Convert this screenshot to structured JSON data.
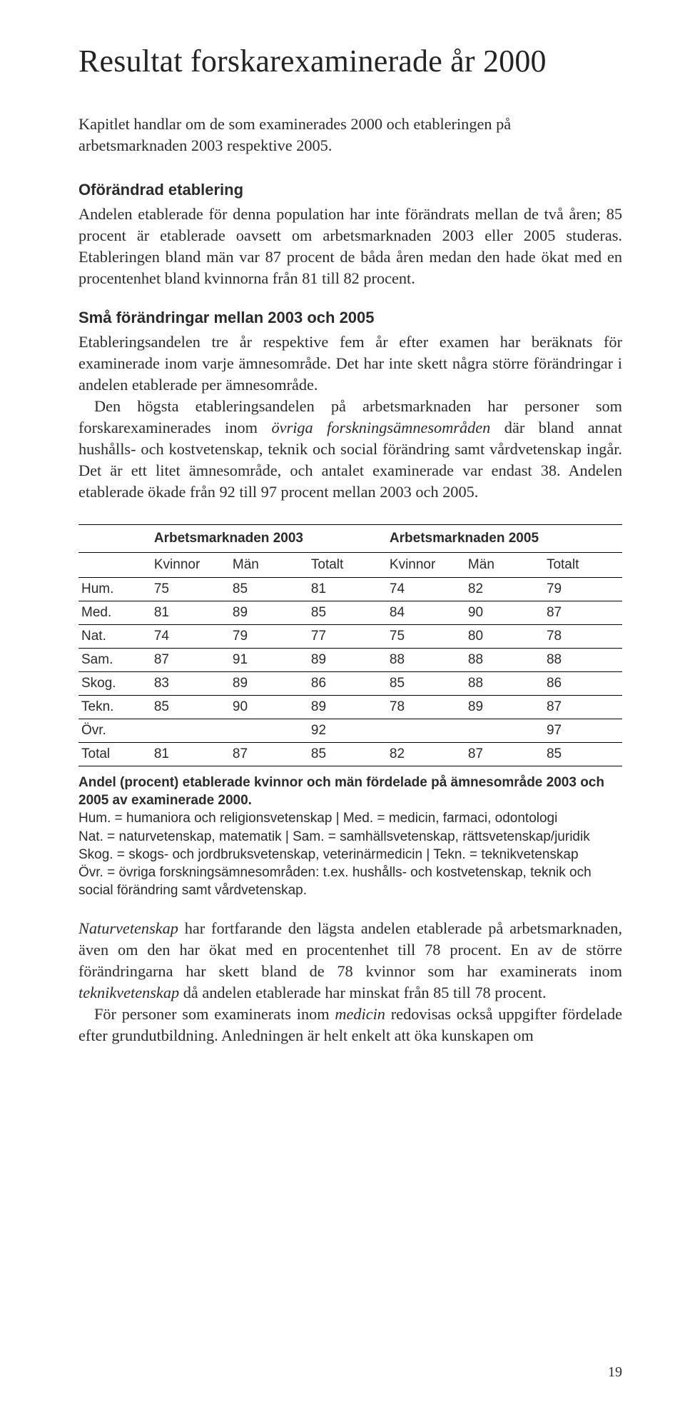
{
  "title": "Resultat forskarexaminerade år 2000",
  "intro": "Kapitlet handlar om de som examinerades 2000 och etableringen på arbetsmarknaden 2003 respektive 2005.",
  "s1": {
    "heading": "Oförändrad etablering",
    "p1": "Andelen etablerade för denna population har inte förändrats mellan de två åren; 85 procent är etablerade oavsett om arbetsmarknaden 2003 eller 2005 studeras. Etableringen bland män var 87 procent de båda åren medan den hade ökat med en procentenhet bland kvinnorna från 81 till 82 procent."
  },
  "s2": {
    "heading": "Små förändringar mellan 2003 och 2005",
    "p1": "Etableringsandelen tre år respektive fem år efter examen har beräknats för examinerade inom varje ämnesområde. Det har inte skett några större förändringar i andelen etablerade per ämnesområde.",
    "p2a": "Den högsta etableringsandelen på arbetsmarknaden har personer som forskarexaminerades inom ",
    "p2em": "övriga forskningsämnesområden",
    "p2b": " där bland annat hushålls- och kostvetenskap, teknik och social förändring samt vårdvetenskap ingår. Det är ett litet ämnesområde, och antalet examinerade var endast 38. Andelen etablerade ökade från 92 till 97 procent mellan 2003 och 2005."
  },
  "table": {
    "group_2003": "Arbetsmarknaden 2003",
    "group_2005": "Arbetsmarknaden 2005",
    "col_kvinnor": "Kvinnor",
    "col_man": "Män",
    "col_totalt": "Totalt",
    "rows": [
      {
        "label": "Hum.",
        "k3": "75",
        "m3": "85",
        "t3": "81",
        "k5": "74",
        "m5": "82",
        "t5": "79"
      },
      {
        "label": "Med.",
        "k3": "81",
        "m3": "89",
        "t3": "85",
        "k5": "84",
        "m5": "90",
        "t5": "87"
      },
      {
        "label": "Nat.",
        "k3": "74",
        "m3": "79",
        "t3": "77",
        "k5": "75",
        "m5": "80",
        "t5": "78"
      },
      {
        "label": "Sam.",
        "k3": "87",
        "m3": "91",
        "t3": "89",
        "k5": "88",
        "m5": "88",
        "t5": "88"
      },
      {
        "label": "Skog.",
        "k3": "83",
        "m3": "89",
        "t3": "86",
        "k5": "85",
        "m5": "88",
        "t5": "86"
      },
      {
        "label": "Tekn.",
        "k3": "85",
        "m3": "90",
        "t3": "89",
        "k5": "78",
        "m5": "89",
        "t5": "87"
      },
      {
        "label": "Övr.",
        "k3": "",
        "m3": "",
        "t3": "92",
        "k5": "",
        "m5": "",
        "t5": "97"
      },
      {
        "label": "Total",
        "k3": "81",
        "m3": "87",
        "t3": "85",
        "k5": "82",
        "m5": "87",
        "t5": "85"
      }
    ]
  },
  "caption": {
    "bold": "Andel (procent) etablerade kvinnor och män fördelade på ämnesområde 2003 och 2005 av examinerade 2000.",
    "l1": "Hum. = humaniora och religionsvetenskap | Med. = medicin, farmaci, odontologi",
    "l2": "Nat. = naturvetenskap, matematik | Sam. = samhällsvetenskap, rättsvetenskap/juridik",
    "l3": "Skog. = skogs- och jordbruksvetenskap, veterinärmedicin | Tekn. = teknikvetenskap",
    "l4": "Övr. = övriga forskningsämnesområden: t.ex. hushålls- och kostvetenskap, teknik och social förändring samt vårdvetenskap."
  },
  "after": {
    "p1a": "",
    "p1em": "Naturvetenskap",
    "p1b": " har fortfarande den lägsta andelen etablerade på arbetsmarknaden, även om den har ökat med en procentenhet till 78 procent. En av de större förändringarna har skett bland de 78 kvinnor som har examinerats inom ",
    "p1em2": "teknikvetenskap",
    "p1c": " då andelen etablerade har minskat från 85 till 78 procent.",
    "p2a": "För personer som examinerats inom ",
    "p2em": "medicin",
    "p2b": " redovisas också uppgifter fördelade efter grundutbildning. Anledningen är helt enkelt att öka kunskapen om"
  },
  "pagenum": "19"
}
